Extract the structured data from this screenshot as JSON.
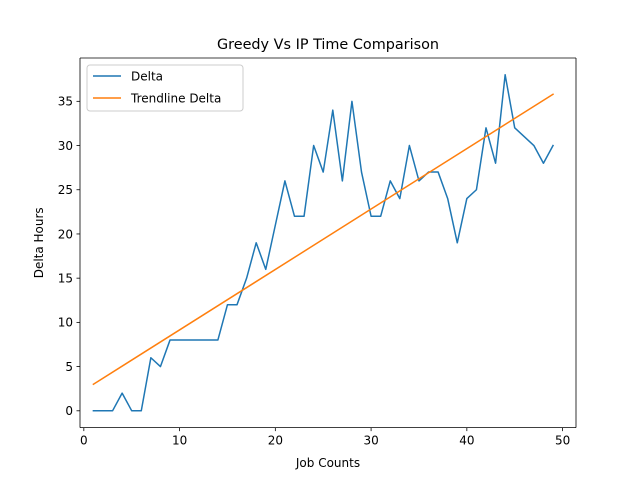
{
  "chart_data": {
    "type": "line",
    "title": "Greedy Vs IP Time Comparison",
    "xlabel": "Job Counts",
    "ylabel": "Delta Hours",
    "xlim": [
      -0.4,
      51.4
    ],
    "ylim": [
      -1.9,
      39.9
    ],
    "xticks": [
      0,
      10,
      20,
      30,
      40,
      50
    ],
    "yticks": [
      0,
      5,
      10,
      15,
      20,
      25,
      30,
      35
    ],
    "grid": false,
    "legend_position": "upper-left",
    "series": [
      {
        "name": "Delta",
        "color": "#1f77b4",
        "x": [
          1,
          2,
          3,
          4,
          5,
          6,
          7,
          8,
          9,
          10,
          11,
          12,
          13,
          14,
          15,
          16,
          17,
          18,
          19,
          20,
          21,
          22,
          23,
          24,
          25,
          26,
          27,
          28,
          29,
          30,
          31,
          32,
          33,
          34,
          35,
          36,
          37,
          38,
          39,
          40,
          41,
          42,
          43,
          44,
          45,
          46,
          47,
          48,
          49
        ],
        "y": [
          0,
          0,
          0,
          2,
          0,
          0,
          6,
          5,
          8,
          8,
          8,
          8,
          8,
          8,
          12,
          12,
          15,
          19,
          16,
          21,
          26,
          22,
          22,
          30,
          27,
          34,
          26,
          35,
          27,
          22,
          22,
          26,
          24,
          30,
          26,
          27,
          27,
          24,
          19,
          24,
          25,
          32,
          28,
          38,
          32,
          31,
          30,
          28,
          30
        ]
      },
      {
        "name": "Trendline Delta",
        "color": "#ff7f0e",
        "x": [
          1,
          49
        ],
        "y": [
          3.0,
          35.8
        ]
      }
    ]
  }
}
